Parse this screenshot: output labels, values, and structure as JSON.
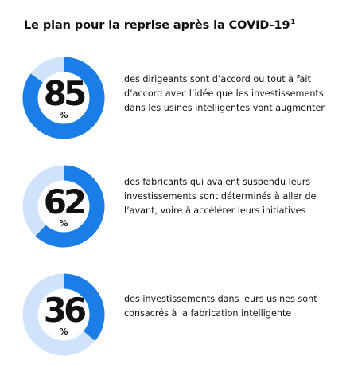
{
  "title": "Le plan pour la reprise après la COVID-19",
  "title_footnote": "1",
  "colors": {
    "accent": "#1a7ee6",
    "track": "#cfe4fb"
  },
  "chart_data": {
    "type": "donut",
    "title": "Le plan pour la reprise après la COVID-19",
    "unit": "%",
    "stats": [
      {
        "value": 85,
        "label": "85",
        "unit": "%",
        "description": "des dirigeants sont d’accord ou tout à fait d’accord avec l’idée que les investissements dans les usines intelligentes vont augmenter"
      },
      {
        "value": 62,
        "label": "62",
        "unit": "%",
        "description": "des fabricants qui avaient suspendu leurs investissements sont déterminés à aller de l’avant, voire à accélérer leurs initiatives"
      },
      {
        "value": 36,
        "label": "36",
        "unit": "%",
        "description": "des investissements dans leurs usines sont consacrés à la fabrication intelligente"
      }
    ]
  }
}
